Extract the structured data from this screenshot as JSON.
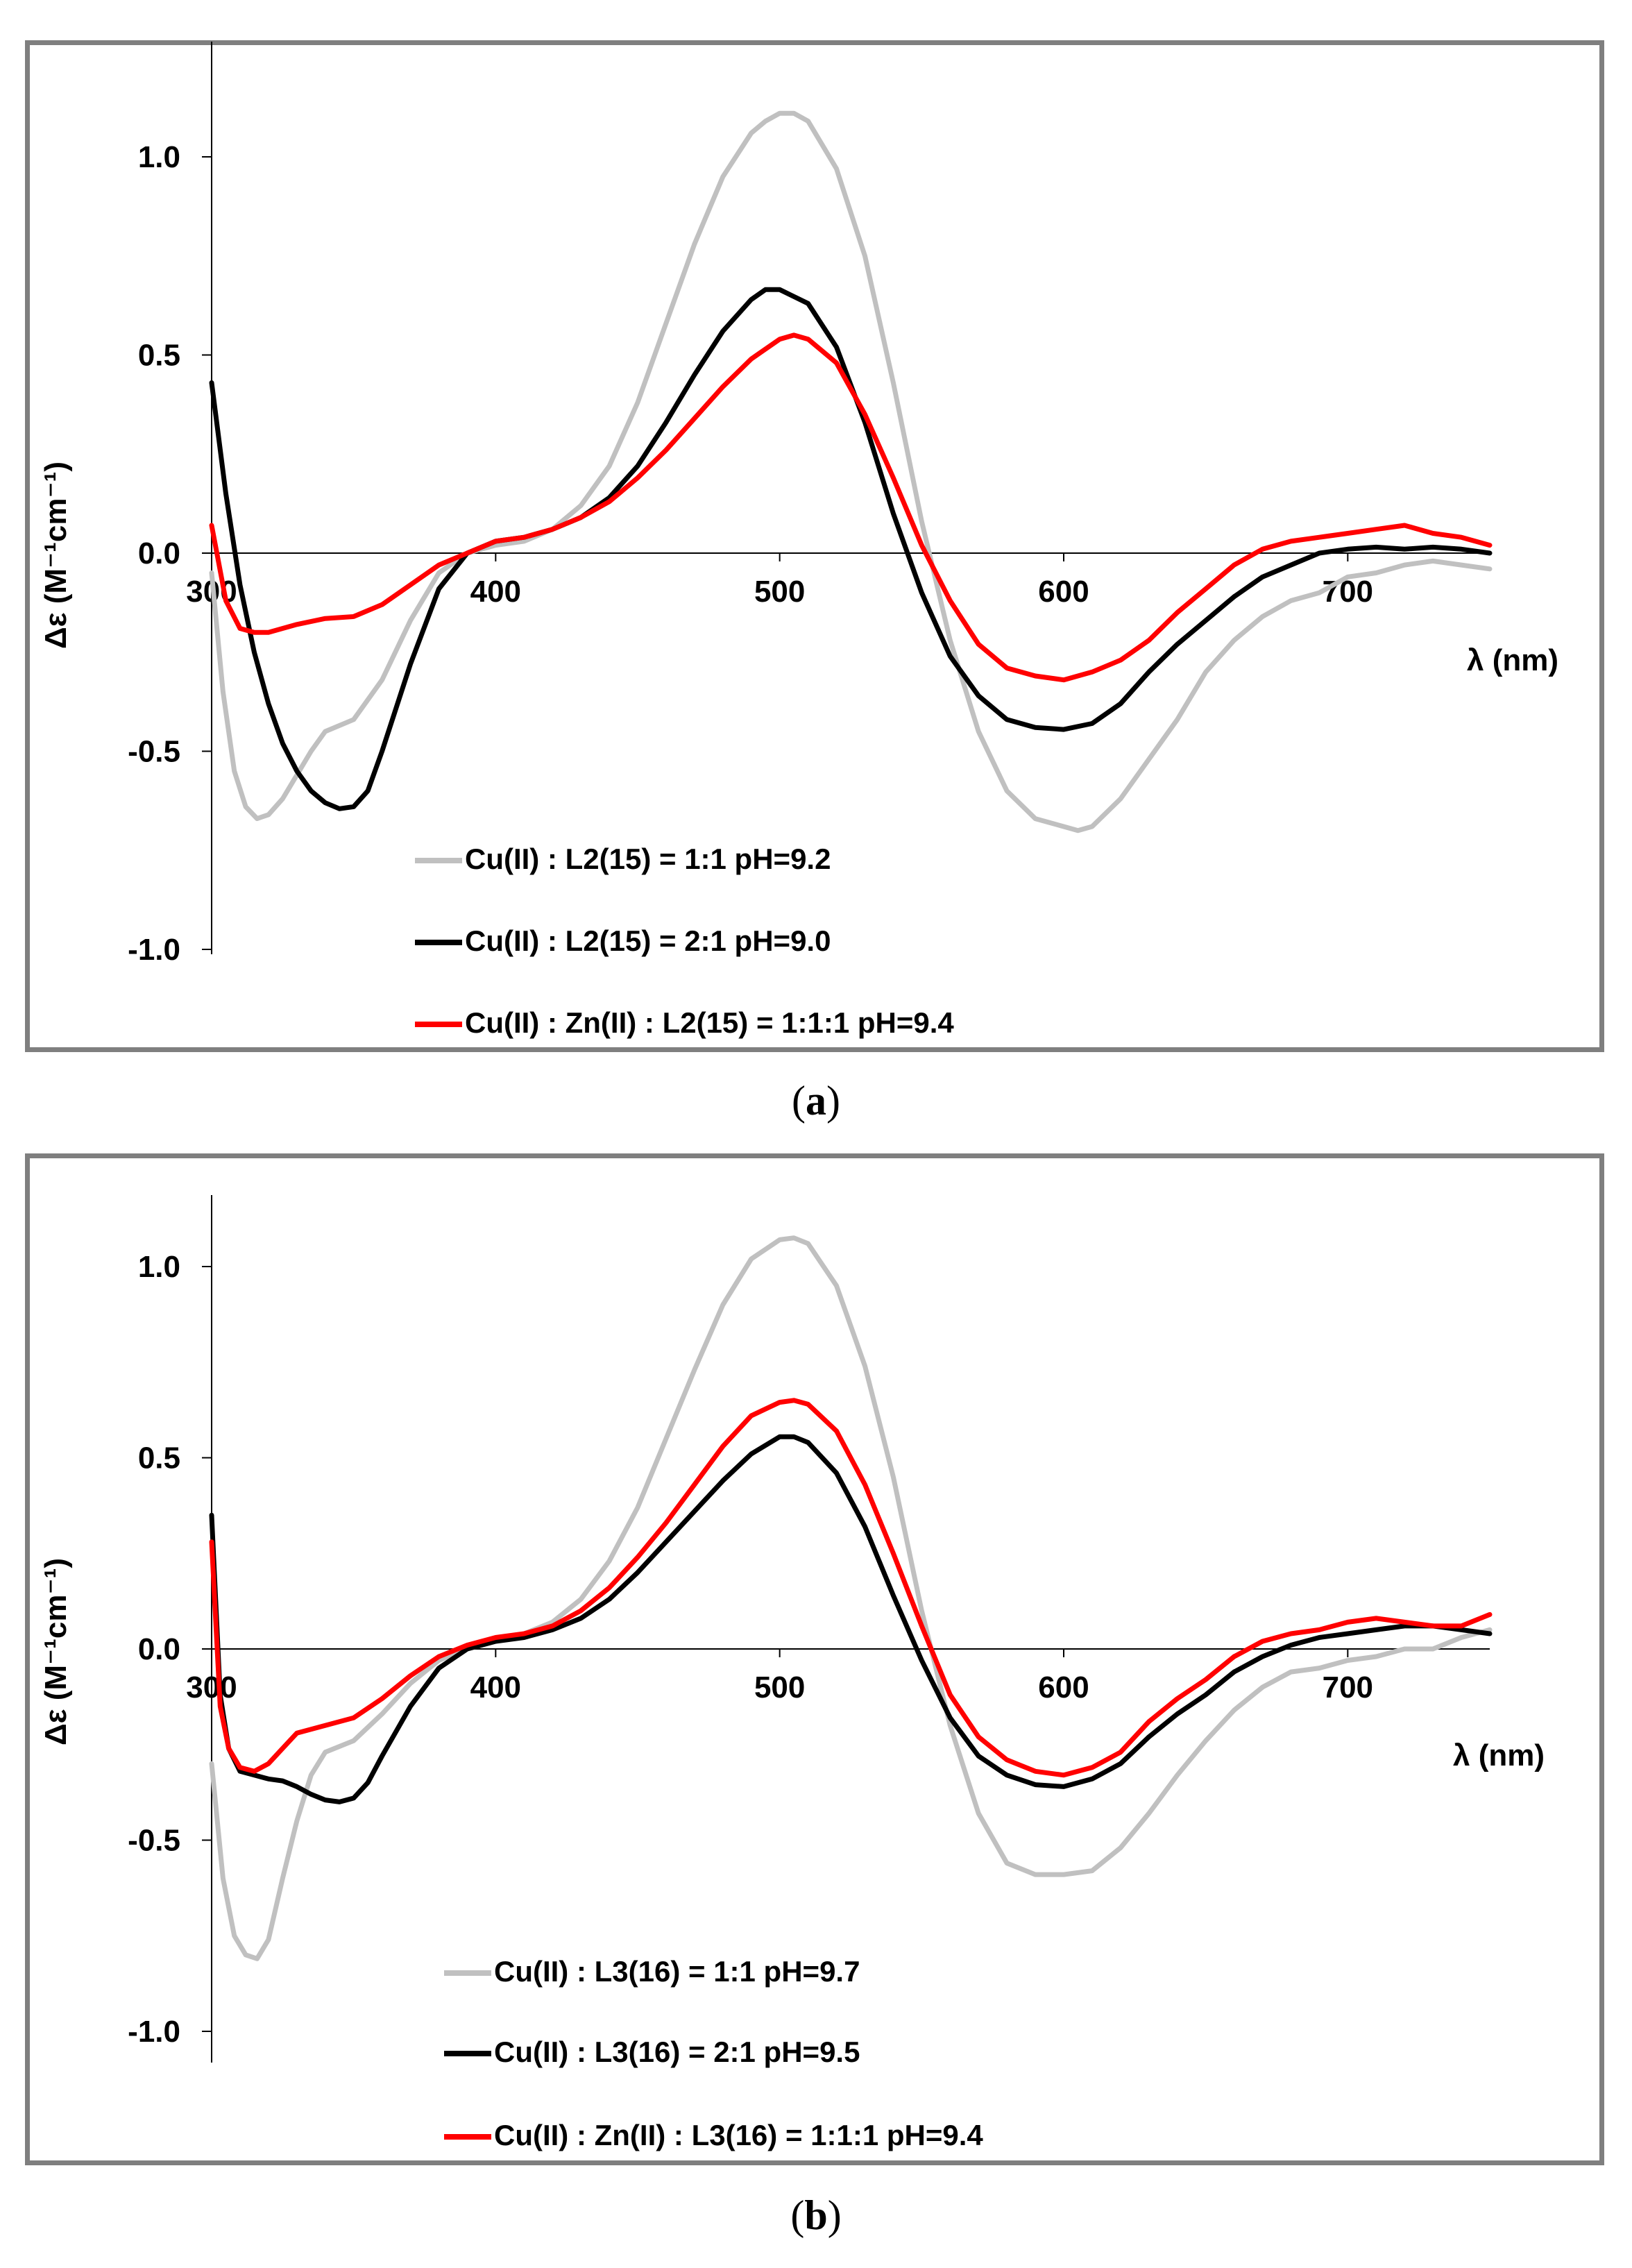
{
  "captions": {
    "a_label": "a",
    "b_label": "b"
  },
  "chart_data": [
    {
      "panel": "a",
      "type": "line",
      "title": "",
      "xlabel": "λ (nm)",
      "ylabel": "Δε (M⁻¹cm⁻¹)",
      "xlim": [
        300,
        750
      ],
      "ylim": [
        -1.0,
        1.2
      ],
      "xticks": [
        300,
        400,
        500,
        600,
        700
      ],
      "yticks": [
        1.0,
        0.5,
        0.0,
        -0.5,
        -1.0
      ],
      "ytick_labels": [
        "1.0",
        "0.5",
        "0.0",
        "-0.5",
        "-1.0"
      ],
      "grid": false,
      "legend_position": "bottom-center",
      "series": [
        {
          "name": "Cu(II) : L2(15) = 1:1 pH=9.2",
          "color": "#c0c0c0",
          "x": [
            300,
            304,
            308,
            312,
            316,
            320,
            325,
            330,
            335,
            340,
            350,
            360,
            370,
            380,
            390,
            400,
            410,
            420,
            430,
            440,
            450,
            460,
            470,
            480,
            490,
            495,
            500,
            505,
            510,
            520,
            530,
            540,
            550,
            560,
            570,
            580,
            590,
            600,
            605,
            610,
            620,
            630,
            640,
            650,
            660,
            670,
            680,
            690,
            700,
            710,
            720,
            730,
            740,
            750
          ],
          "y": [
            -0.05,
            -0.35,
            -0.55,
            -0.64,
            -0.67,
            -0.66,
            -0.62,
            -0.56,
            -0.5,
            -0.45,
            -0.42,
            -0.32,
            -0.17,
            -0.05,
            0.0,
            0.02,
            0.03,
            0.06,
            0.12,
            0.22,
            0.38,
            0.58,
            0.78,
            0.95,
            1.06,
            1.09,
            1.11,
            1.11,
            1.09,
            0.97,
            0.75,
            0.43,
            0.08,
            -0.22,
            -0.45,
            -0.6,
            -0.67,
            -0.69,
            -0.7,
            -0.69,
            -0.62,
            -0.52,
            -0.42,
            -0.3,
            -0.22,
            -0.16,
            -0.12,
            -0.1,
            -0.06,
            -0.05,
            -0.03,
            -0.02,
            -0.03,
            -0.04
          ]
        },
        {
          "name": "Cu(II) : L2(15) = 2:1 pH=9.0",
          "color": "#000000",
          "x": [
            300,
            305,
            310,
            315,
            320,
            325,
            330,
            335,
            340,
            345,
            350,
            355,
            360,
            370,
            380,
            390,
            400,
            410,
            420,
            430,
            440,
            450,
            460,
            470,
            480,
            490,
            495,
            500,
            510,
            520,
            530,
            540,
            550,
            560,
            570,
            580,
            590,
            600,
            610,
            620,
            630,
            640,
            650,
            660,
            670,
            680,
            690,
            700,
            710,
            720,
            730,
            740,
            750
          ],
          "y": [
            0.43,
            0.15,
            -0.08,
            -0.25,
            -0.38,
            -0.48,
            -0.55,
            -0.6,
            -0.63,
            -0.645,
            -0.64,
            -0.6,
            -0.5,
            -0.28,
            -0.09,
            0.0,
            0.03,
            0.04,
            0.06,
            0.09,
            0.14,
            0.22,
            0.33,
            0.45,
            0.56,
            0.64,
            0.665,
            0.665,
            0.63,
            0.52,
            0.33,
            0.1,
            -0.1,
            -0.26,
            -0.36,
            -0.42,
            -0.44,
            -0.445,
            -0.43,
            -0.38,
            -0.3,
            -0.23,
            -0.17,
            -0.11,
            -0.06,
            -0.03,
            0.0,
            0.01,
            0.015,
            0.01,
            0.015,
            0.01,
            0.0
          ]
        },
        {
          "name": "Cu(II) : Zn(II) : L2(15) = 1:1:1 pH=9.4",
          "color": "#ff0000",
          "x": [
            300,
            305,
            310,
            315,
            320,
            330,
            340,
            350,
            360,
            370,
            380,
            390,
            400,
            410,
            420,
            430,
            440,
            450,
            460,
            470,
            480,
            490,
            500,
            505,
            510,
            520,
            530,
            540,
            550,
            560,
            570,
            580,
            590,
            600,
            610,
            620,
            630,
            640,
            650,
            660,
            670,
            680,
            690,
            700,
            710,
            720,
            730,
            740,
            750
          ],
          "y": [
            0.07,
            -0.12,
            -0.19,
            -0.2,
            -0.2,
            -0.18,
            -0.165,
            -0.16,
            -0.13,
            -0.08,
            -0.03,
            0.0,
            0.03,
            0.04,
            0.06,
            0.09,
            0.13,
            0.19,
            0.26,
            0.34,
            0.42,
            0.49,
            0.54,
            0.55,
            0.54,
            0.48,
            0.35,
            0.19,
            0.02,
            -0.12,
            -0.23,
            -0.29,
            -0.31,
            -0.32,
            -0.3,
            -0.27,
            -0.22,
            -0.15,
            -0.09,
            -0.03,
            0.01,
            0.03,
            0.04,
            0.05,
            0.06,
            0.07,
            0.05,
            0.04,
            0.02
          ]
        }
      ]
    },
    {
      "panel": "b",
      "type": "line",
      "title": "",
      "xlabel": "λ (nm)",
      "ylabel": "Δε (M⁻¹cm⁻¹)",
      "xlim": [
        300,
        750
      ],
      "ylim": [
        -1.0,
        1.2
      ],
      "xticks": [
        300,
        400,
        500,
        600,
        700
      ],
      "yticks": [
        1.0,
        0.5,
        0.0,
        -0.5,
        -1.0
      ],
      "ytick_labels": [
        "1.0",
        "0.5",
        "0.0",
        "-0.5",
        "-1.0"
      ],
      "grid": false,
      "legend_position": "bottom-center",
      "series": [
        {
          "name": "Cu(II) : L3(16) = 1:1 pH=9.7",
          "color": "#c0c0c0",
          "x": [
            300,
            304,
            308,
            312,
            316,
            320,
            325,
            330,
            335,
            340,
            350,
            360,
            370,
            380,
            390,
            400,
            410,
            420,
            430,
            440,
            450,
            460,
            470,
            480,
            490,
            500,
            505,
            510,
            520,
            530,
            540,
            550,
            560,
            570,
            580,
            590,
            600,
            610,
            620,
            630,
            640,
            650,
            660,
            670,
            680,
            690,
            700,
            710,
            720,
            730,
            740,
            750
          ],
          "y": [
            -0.3,
            -0.6,
            -0.75,
            -0.8,
            -0.81,
            -0.76,
            -0.6,
            -0.45,
            -0.33,
            -0.27,
            -0.24,
            -0.17,
            -0.09,
            -0.03,
            0.0,
            0.02,
            0.04,
            0.07,
            0.13,
            0.23,
            0.37,
            0.55,
            0.73,
            0.9,
            1.02,
            1.07,
            1.075,
            1.06,
            0.95,
            0.74,
            0.45,
            0.1,
            -0.2,
            -0.43,
            -0.56,
            -0.59,
            -0.59,
            -0.58,
            -0.52,
            -0.43,
            -0.33,
            -0.24,
            -0.16,
            -0.1,
            -0.06,
            -0.05,
            -0.03,
            -0.02,
            0.0,
            0.0,
            0.03,
            0.05
          ]
        },
        {
          "name": "Cu(II) : L3(16) = 2:1 pH=9.5",
          "color": "#000000",
          "x": [
            300,
            303,
            306,
            310,
            315,
            320,
            325,
            330,
            335,
            340,
            345,
            350,
            355,
            360,
            370,
            380,
            390,
            400,
            410,
            420,
            430,
            440,
            450,
            460,
            470,
            480,
            490,
            500,
            505,
            510,
            520,
            530,
            540,
            550,
            560,
            570,
            580,
            590,
            600,
            610,
            620,
            630,
            640,
            650,
            660,
            670,
            680,
            690,
            700,
            710,
            720,
            730,
            740,
            750
          ],
          "y": [
            0.35,
            -0.12,
            -0.26,
            -0.32,
            -0.33,
            -0.34,
            -0.345,
            -0.36,
            -0.38,
            -0.395,
            -0.4,
            -0.39,
            -0.35,
            -0.28,
            -0.15,
            -0.05,
            0.0,
            0.02,
            0.03,
            0.05,
            0.08,
            0.13,
            0.2,
            0.28,
            0.36,
            0.44,
            0.51,
            0.555,
            0.555,
            0.54,
            0.46,
            0.32,
            0.14,
            -0.03,
            -0.18,
            -0.28,
            -0.33,
            -0.355,
            -0.36,
            -0.34,
            -0.3,
            -0.23,
            -0.17,
            -0.12,
            -0.06,
            -0.02,
            0.01,
            0.03,
            0.04,
            0.05,
            0.06,
            0.06,
            0.05,
            0.04
          ]
        },
        {
          "name": "Cu(II) : Zn(II) : L3(16) = 1:1:1 pH=9.4",
          "color": "#ff0000",
          "x": [
            300,
            303,
            306,
            310,
            315,
            320,
            325,
            330,
            340,
            350,
            360,
            370,
            380,
            390,
            400,
            410,
            420,
            430,
            440,
            450,
            460,
            470,
            480,
            490,
            500,
            505,
            510,
            520,
            530,
            540,
            550,
            560,
            570,
            580,
            590,
            600,
            610,
            620,
            630,
            640,
            650,
            660,
            670,
            680,
            690,
            700,
            710,
            720,
            730,
            740,
            750
          ],
          "y": [
            0.28,
            -0.15,
            -0.26,
            -0.31,
            -0.32,
            -0.3,
            -0.26,
            -0.22,
            -0.2,
            -0.18,
            -0.13,
            -0.07,
            -0.02,
            0.01,
            0.03,
            0.04,
            0.06,
            0.1,
            0.16,
            0.24,
            0.33,
            0.43,
            0.53,
            0.61,
            0.645,
            0.65,
            0.64,
            0.57,
            0.43,
            0.25,
            0.06,
            -0.12,
            -0.23,
            -0.29,
            -0.32,
            -0.33,
            -0.31,
            -0.27,
            -0.19,
            -0.13,
            -0.08,
            -0.02,
            0.02,
            0.04,
            0.05,
            0.07,
            0.08,
            0.07,
            0.06,
            0.06,
            0.09
          ]
        }
      ]
    }
  ]
}
